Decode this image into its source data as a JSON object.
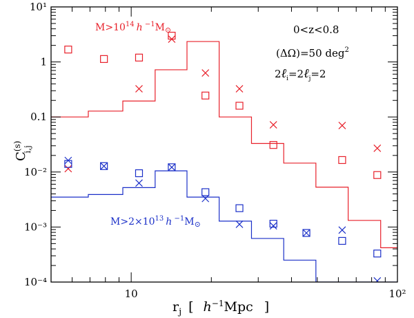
{
  "chart_data": {
    "type": "scatter",
    "title": "",
    "xlabel": "r_j [ h^-1 Mpc ]",
    "ylabel": "C_ij^(s)",
    "xscale": "log",
    "yscale": "log",
    "xlim": [
      5,
      100
    ],
    "ylim": [
      0.0001,
      10
    ],
    "grid": false,
    "x_tick_labels": [
      {
        "value": 10,
        "label": "10"
      },
      {
        "value": 100,
        "label": "10²"
      }
    ],
    "y_tick_labels": [
      {
        "value": 0.0001,
        "label": "10⁻⁴"
      },
      {
        "value": 0.001,
        "label": "10⁻³"
      },
      {
        "value": 0.01,
        "label": "10⁻²"
      },
      {
        "value": 0.1,
        "label": "0.1"
      },
      {
        "value": 1,
        "label": "1"
      },
      {
        "value": 10,
        "label": "10¹"
      }
    ],
    "annotations": [
      "0<z<0.8",
      "(ΔΩ)=50 deg²",
      "2ℓi=2ℓj=2"
    ],
    "groups": [
      {
        "name": "M>10¹⁴ h⁻¹M⊙",
        "color": "#e8202a",
        "step_edges": [
          5.0,
          6.9,
          9.3,
          12.3,
          16.2,
          21.4,
          28.3,
          37.4,
          49.4,
          65.3,
          86.5,
          100
        ],
        "step_values": [
          0.1,
          0.128,
          0.195,
          0.72,
          2.35,
          0.1,
          0.033,
          0.0145,
          0.0053,
          0.00132,
          0.00042
        ],
        "squares": {
          "x": [
            5.8,
            7.9,
            10.7,
            14.2,
            19.0,
            25.5,
            34.2,
            45.5,
            62.0,
            84.0
          ],
          "y": [
            1.68,
            1.13,
            1.2,
            3.0,
            0.245,
            0.16,
            0.031,
            null,
            0.0165,
            0.0088
          ]
        },
        "crosses": {
          "x": [
            5.8,
            10.7,
            14.2,
            19.0,
            25.5,
            34.2,
            62.0,
            84.0
          ],
          "y": [
            0.0115,
            0.325,
            2.6,
            0.63,
            0.325,
            0.072,
            0.07,
            0.027
          ]
        }
      },
      {
        "name": "M>2×10¹³ h⁻¹M⊙",
        "color": "#1a2fc8",
        "step_edges": [
          5.0,
          6.9,
          9.3,
          12.3,
          16.2,
          21.4,
          28.3,
          37.4,
          49.4,
          65.3,
          86.5,
          100
        ],
        "step_values": [
          0.0035,
          0.0039,
          0.0052,
          0.0105,
          0.0035,
          0.00128,
          0.00062,
          0.00025,
          0.0001,
          2e-05,
          1e-05
        ],
        "squares": {
          "x": [
            5.8,
            7.9,
            10.7,
            14.2,
            19.0,
            25.5,
            34.2,
            45.5,
            62.0,
            84.0
          ],
          "y": [
            0.014,
            0.0128,
            0.0095,
            0.0122,
            0.0043,
            0.0022,
            0.00115,
            0.00078,
            0.00056,
            0.00033
          ]
        },
        "crosses": {
          "x": [
            5.8,
            7.9,
            10.7,
            14.2,
            19.0,
            25.5,
            34.2,
            45.5,
            62.0,
            84.0
          ],
          "y": [
            0.0162,
            0.0128,
            0.0063,
            0.0122,
            0.0033,
            0.00112,
            0.00105,
            0.00078,
            0.00088,
            0.000105
          ]
        }
      }
    ]
  }
}
